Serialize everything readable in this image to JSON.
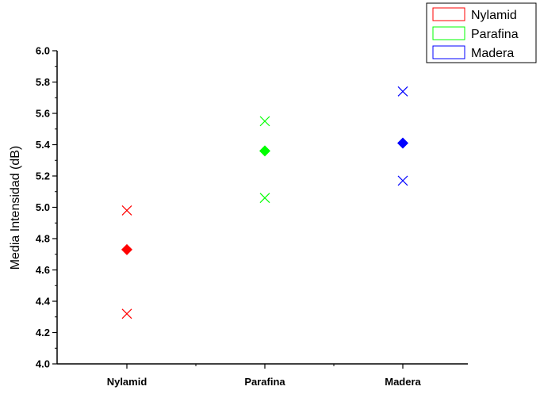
{
  "chart_data": {
    "type": "scatter",
    "title": "",
    "xlabel": "",
    "ylabel": "Media Intensidad (dB)",
    "categories": [
      "Nylamid",
      "Parafina",
      "Madera"
    ],
    "ylim": [
      4.0,
      6.0
    ],
    "yticks": [
      "4.0",
      "4.2",
      "4.4",
      "4.6",
      "4.8",
      "5.0",
      "5.2",
      "5.4",
      "5.6",
      "5.8",
      "6.0"
    ],
    "grid": false,
    "legend_position": "top-right",
    "series": [
      {
        "name": "Nylamid",
        "color": "#ff0000",
        "mean": 4.73,
        "max": 4.98,
        "min": 4.32
      },
      {
        "name": "Parafina",
        "color": "#00ff00",
        "mean": 5.36,
        "max": 5.55,
        "min": 5.06
      },
      {
        "name": "Madera",
        "color": "#0000ff",
        "mean": 5.41,
        "max": 5.74,
        "min": 5.17
      }
    ],
    "marker_mean": "filled-diamond",
    "marker_extremes": "x-cross"
  }
}
